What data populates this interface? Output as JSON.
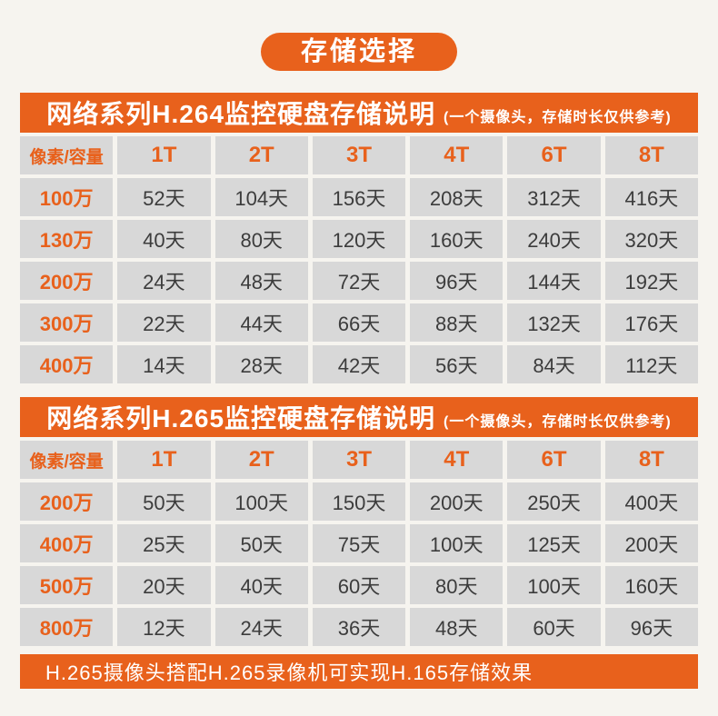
{
  "page": {
    "accent_color": "#e8611c",
    "cell_bg_color": "#d8d8d8",
    "dark_text_color": "#3c3c3c",
    "page_bg_color": "#f6f4ef"
  },
  "badge": {
    "label": "存储选择"
  },
  "chart_data": [
    {
      "type": "table",
      "title": "网络系列H.264监控硬盘存储说明",
      "subtitle": "(一个摄像头，存储时长仅供参考)",
      "columns": [
        "像素/容量",
        "1T",
        "2T",
        "3T",
        "4T",
        "6T",
        "8T"
      ],
      "rows": [
        {
          "label": "100万",
          "values": [
            "52天",
            "104天",
            "156天",
            "208天",
            "312天",
            "416天"
          ]
        },
        {
          "label": "130万",
          "values": [
            "40天",
            "80天",
            "120天",
            "160天",
            "240天",
            "320天"
          ]
        },
        {
          "label": "200万",
          "values": [
            "24天",
            "48天",
            "72天",
            "96天",
            "144天",
            "192天"
          ]
        },
        {
          "label": "300万",
          "values": [
            "22天",
            "44天",
            "66天",
            "88天",
            "132天",
            "176天"
          ]
        },
        {
          "label": "400万",
          "values": [
            "14天",
            "28天",
            "42天",
            "56天",
            "84天",
            "112天"
          ]
        }
      ]
    },
    {
      "type": "table",
      "title": "网络系列H.265监控硬盘存储说明",
      "subtitle": "(一个摄像头，存储时长仅供参考)",
      "columns": [
        "像素/容量",
        "1T",
        "2T",
        "3T",
        "4T",
        "6T",
        "8T"
      ],
      "rows": [
        {
          "label": "200万",
          "values": [
            "50天",
            "100天",
            "150天",
            "200天",
            "250天",
            "400天"
          ]
        },
        {
          "label": "400万",
          "values": [
            "25天",
            "50天",
            "75天",
            "100天",
            "125天",
            "200天"
          ]
        },
        {
          "label": "500万",
          "values": [
            "20天",
            "40天",
            "60天",
            "80天",
            "100天",
            "160天"
          ]
        },
        {
          "label": "800万",
          "values": [
            "12天",
            "24天",
            "36天",
            "48天",
            "60天",
            "96天"
          ]
        }
      ]
    }
  ],
  "footer": {
    "note": "H.265摄像头搭配H.265录像机可实现H.165存储效果"
  }
}
